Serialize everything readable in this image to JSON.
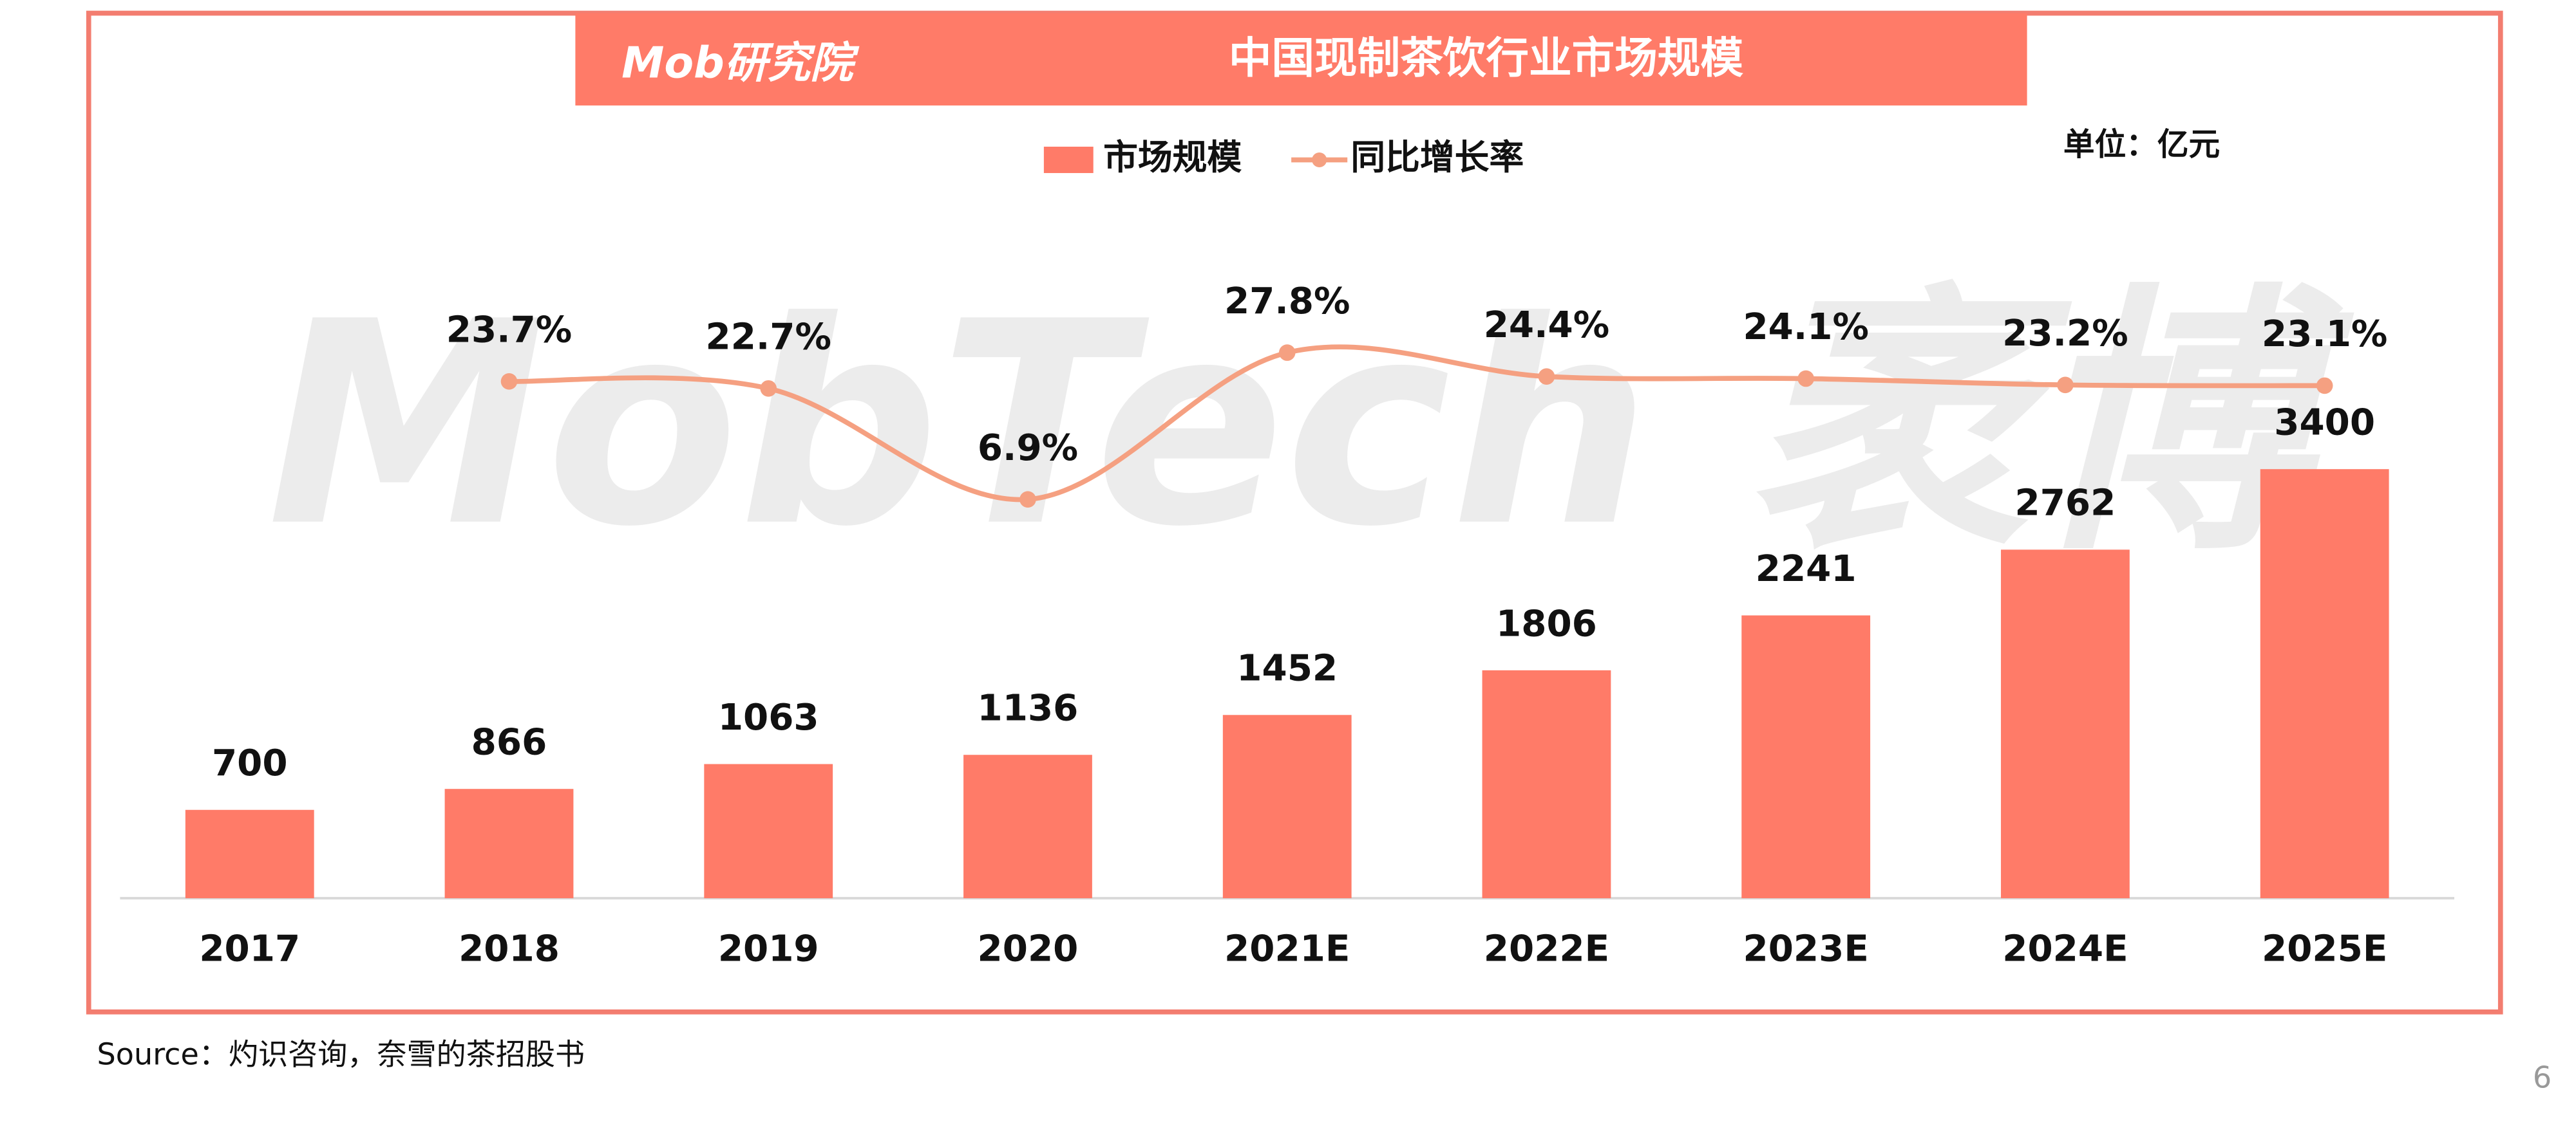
{
  "chart_data": {
    "type": "bar-line",
    "title": "中国现制茶饮行业市场规模",
    "logo": "Mob研究院",
    "watermark": "MobTech 袤博",
    "unit": "单位：亿元",
    "source": "Source：灼识咨询，奈雪的茶招股书",
    "page_number": "6",
    "categories": [
      "2017",
      "2018",
      "2019",
      "2020",
      "2021E",
      "2022E",
      "2023E",
      "2024E",
      "2025E"
    ],
    "series": [
      {
        "name": "市场规模",
        "type": "bar",
        "color": "#ff7b68",
        "values": [
          700,
          866,
          1063,
          1136,
          1452,
          1806,
          2241,
          2762,
          3400
        ]
      },
      {
        "name": "同比增长率",
        "type": "line",
        "axis": "y2",
        "color": "#f5a081",
        "values": [
          null,
          23.7,
          22.7,
          6.9,
          27.8,
          24.4,
          24.1,
          23.2,
          23.1
        ],
        "value_labels": [
          null,
          "23.7%",
          "22.7%",
          "6.9%",
          "27.8%",
          "24.4%",
          "24.1%",
          "23.2%",
          "23.1%"
        ]
      }
    ],
    "ylim": [
      0,
      3500
    ],
    "y2lim": [
      0,
      30
    ]
  }
}
